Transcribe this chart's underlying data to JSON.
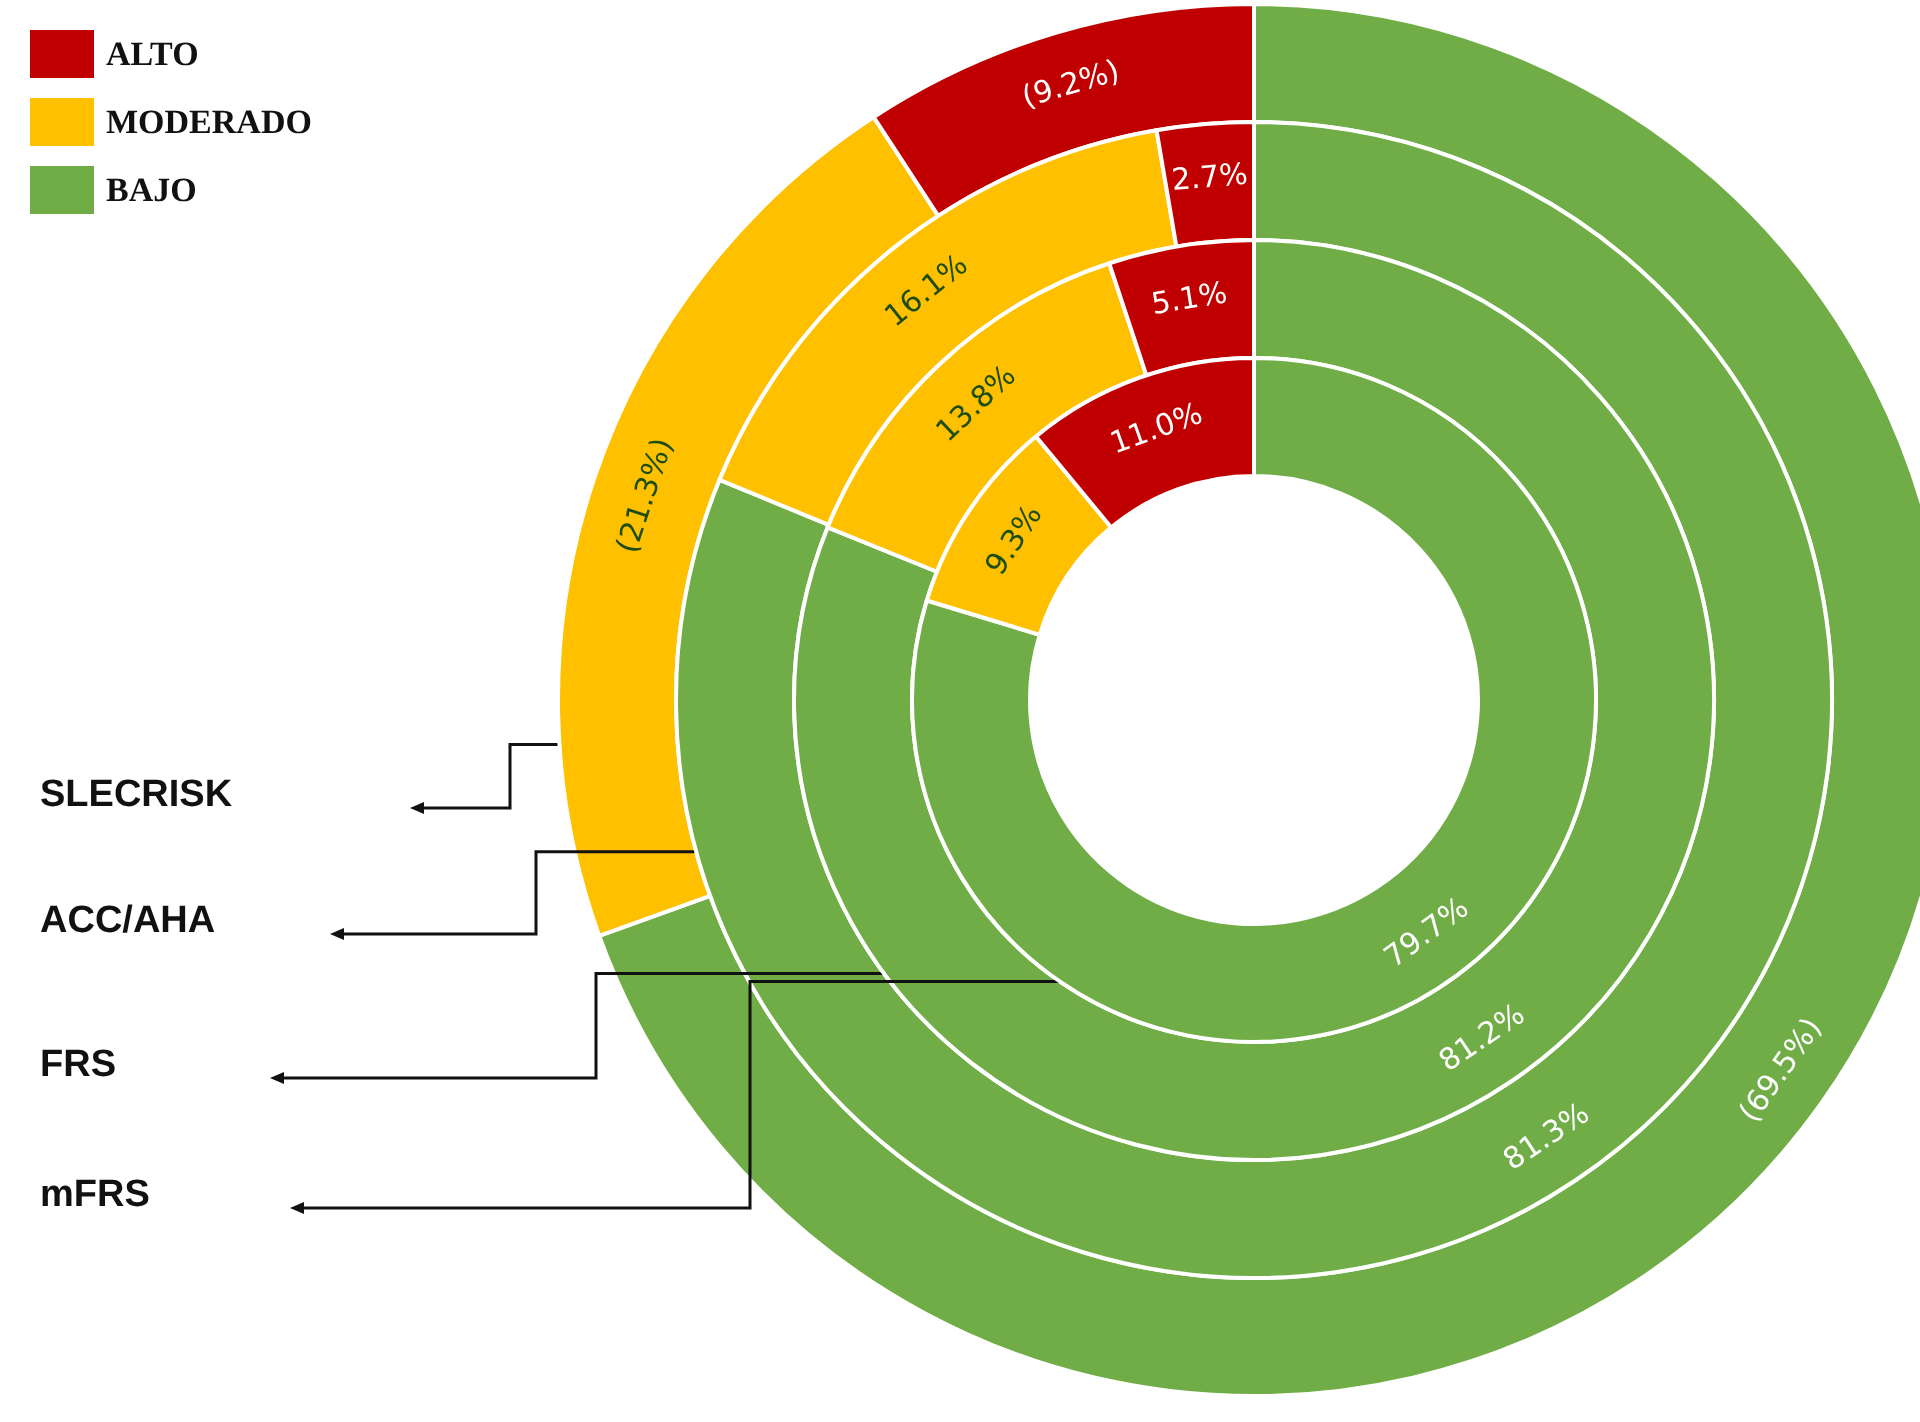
{
  "chart_data": [
    {
      "type": "donut",
      "categories": [
        "BAJO",
        "MODERADO",
        "ALTO"
      ],
      "colors": [
        "#70ad47",
        "#ffc000",
        "#c00000"
      ],
      "legend": "top left",
      "series": [
        {
          "name": "SLECRISK",
          "values": [
            69.5,
            21.3,
            9.2
          ],
          "value_labels": [
            "(69.5%)",
            "(21.3%)",
            "(9.2%)"
          ]
        }
      ]
    },
    {
      "type": "donut",
      "categories": [
        null,
        null,
        null
      ],
      "colors": [
        "#70ad47",
        "#ffc000",
        "#c00000"
      ],
      "series": [
        {
          "name": "ACC/AHA",
          "values": [
            81.3,
            16.1,
            2.7
          ],
          "value_labels": [
            "81.3%",
            "16.1%",
            "2.7%"
          ]
        }
      ]
    },
    {
      "type": "donut",
      "categories": [
        null,
        null,
        null
      ],
      "colors": [
        "#70ad47",
        "#ffc000",
        "#c00000"
      ],
      "series": [
        {
          "name": "FRS",
          "values": [
            81.2,
            13.8,
            5.1
          ],
          "value_labels": [
            "81.2%",
            "13.8%",
            "5.1%"
          ]
        }
      ]
    },
    {
      "type": "donut",
      "categories": [
        null,
        null,
        null
      ],
      "colors": [
        "#70ad47",
        "#ffc000",
        "#c00000"
      ],
      "series": [
        {
          "name": "mFRS",
          "values": [
            79.7,
            9.3,
            11.0
          ],
          "value_labels": [
            "79.7%",
            "9.3%",
            "11.0%"
          ]
        }
      ]
    }
  ]
}
